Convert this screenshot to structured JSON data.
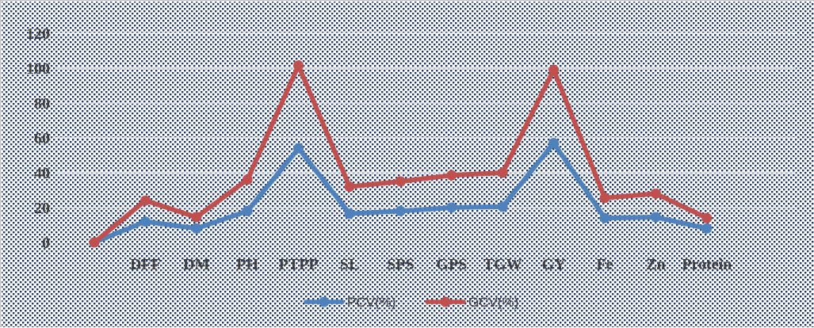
{
  "chart_data": {
    "type": "line",
    "title": "",
    "xlabel": "",
    "ylabel": "",
    "categories": [
      "",
      "DFF",
      "DM",
      "PH",
      "PTPP",
      "SL",
      "SPS",
      "GPS",
      "TGW",
      "GY",
      "Fe",
      "Zn",
      "Protein"
    ],
    "y_ticks": [
      "0",
      "20",
      "40",
      "60",
      "80",
      "100",
      "120"
    ],
    "ylim": [
      0,
      120
    ],
    "grid": true,
    "legend_position": "bottom",
    "series": [
      {
        "name": "PCV(%)",
        "color": "#4f81bd",
        "values": [
          0,
          12,
          8,
          18,
          54,
          16.5,
          18,
          20,
          20.5,
          57,
          14,
          14.5,
          8
        ]
      },
      {
        "name": "GCV(%)",
        "color": "#c0504d",
        "values": [
          0,
          24,
          14.5,
          36,
          101.5,
          32,
          35,
          38.5,
          40,
          99,
          25.5,
          28,
          14
        ]
      }
    ]
  }
}
